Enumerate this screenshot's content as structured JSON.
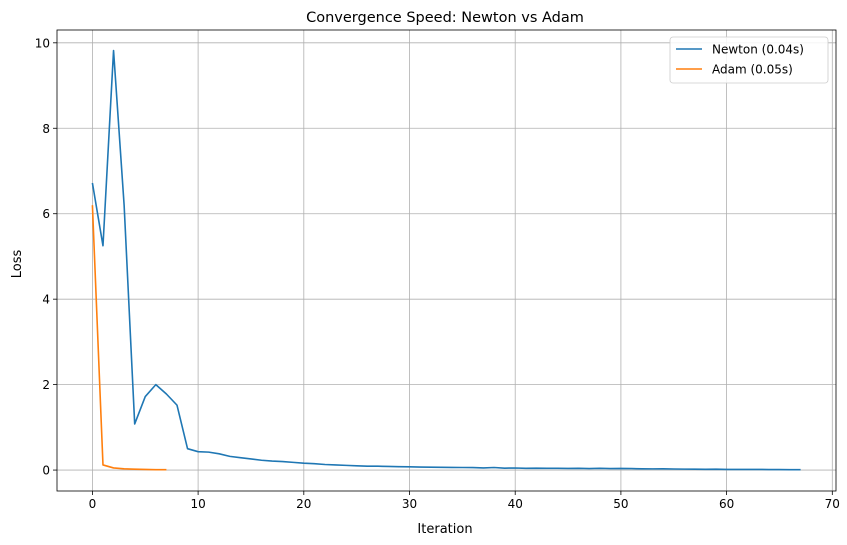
{
  "chart_data": {
    "type": "line",
    "title": "Convergence Speed: Newton vs Adam",
    "xlabel": "Iteration",
    "ylabel": "Loss",
    "xlim": [
      -3.35,
      70.35
    ],
    "ylim": [
      -0.49,
      10.3
    ],
    "xticks": [
      0,
      10,
      20,
      30,
      40,
      50,
      60,
      70
    ],
    "yticks": [
      0,
      2,
      4,
      6,
      8,
      10
    ],
    "grid": true,
    "legend_position": "top-right",
    "series": [
      {
        "name": "Newton (0.04s)",
        "color": "#1f77b4",
        "x": [
          0,
          1,
          2,
          3,
          4,
          5,
          6,
          7,
          8,
          9,
          10,
          11,
          12,
          13,
          14,
          15,
          16,
          17,
          18,
          19,
          20,
          21,
          22,
          23,
          24,
          25,
          26,
          27,
          28,
          29,
          30,
          31,
          32,
          33,
          34,
          35,
          36,
          37,
          38,
          39,
          40,
          41,
          42,
          43,
          44,
          45,
          46,
          47,
          48,
          49,
          50,
          51,
          52,
          53,
          54,
          55,
          56,
          57,
          58,
          59,
          60,
          61,
          62,
          63,
          64,
          65,
          66,
          67
        ],
        "values": [
          6.72,
          5.25,
          9.82,
          6.2,
          1.08,
          1.72,
          2.0,
          1.78,
          1.52,
          0.5,
          0.43,
          0.42,
          0.38,
          0.32,
          0.29,
          0.26,
          0.23,
          0.21,
          0.2,
          0.18,
          0.16,
          0.15,
          0.13,
          0.12,
          0.11,
          0.1,
          0.09,
          0.09,
          0.085,
          0.08,
          0.075,
          0.07,
          0.068,
          0.065,
          0.062,
          0.06,
          0.058,
          0.05,
          0.06,
          0.045,
          0.048,
          0.042,
          0.045,
          0.04,
          0.042,
          0.038,
          0.04,
          0.035,
          0.042,
          0.035,
          0.038,
          0.035,
          0.03,
          0.028,
          0.03,
          0.025,
          0.022,
          0.02,
          0.018,
          0.02,
          0.015,
          0.015,
          0.014,
          0.016,
          0.012,
          0.012,
          0.01,
          0.008
        ]
      },
      {
        "name": "Adam (0.05s)",
        "color": "#ff7f0e",
        "x": [
          0,
          1,
          2,
          3,
          4,
          5,
          6,
          7
        ],
        "values": [
          6.2,
          0.12,
          0.05,
          0.03,
          0.02,
          0.015,
          0.01,
          0.01
        ]
      }
    ]
  }
}
